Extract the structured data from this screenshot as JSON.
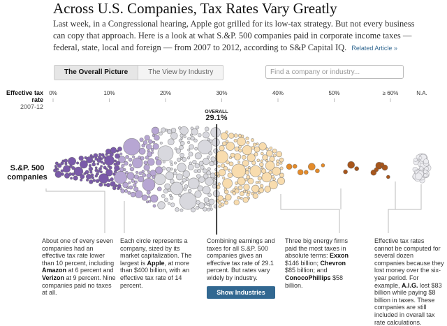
{
  "header": {
    "title": "Across U.S. Companies, Tax Rates Vary Greatly",
    "intro": "Last week, in a Congressional hearing, Apple got grilled for its low-tax strategy. But not every business can copy that approach. Here is a look at what S.&P. 500 companies paid in corporate income taxes — federal, state, local and foreign — from 2007 to 2012, according to S&P Capital IQ.",
    "related_link": "Related Article »"
  },
  "controls": {
    "tabs": [
      {
        "label": "The Overall Picture",
        "active": true
      },
      {
        "label": "The View by Industry",
        "active": false
      }
    ],
    "search_placeholder": "Find a company or industry..."
  },
  "colors": {
    "purple": "#7a5aa9",
    "light_purple": "#b7a6d3",
    "grey": "#d8d8de",
    "peach": "#f8dcae",
    "orange": "#e48b2a",
    "dark_orange": "#a8561b",
    "button": "#326891"
  },
  "chart_data": {
    "type": "scatter",
    "subtype": "beeswarm",
    "title": "Effective tax rate",
    "subtitle": "2007-12",
    "xlabel": "Effective tax rate",
    "x_unit": "percent",
    "xlim": [
      0,
      60
    ],
    "ticks": [
      "0%",
      "10%",
      "20%",
      "30%",
      "40%",
      "50%",
      "≥ 60%",
      "N.A."
    ],
    "tick_values": [
      0,
      10,
      20,
      30,
      40,
      50,
      60
    ],
    "series": [
      {
        "name": "S.&P. 500 companies"
      }
    ],
    "overall": {
      "label": "OVERALL",
      "value": "29.1%",
      "x": 29.1
    },
    "highlighted_points": [
      {
        "name": "Amazon",
        "x": 6
      },
      {
        "name": "Verizon",
        "x": 9
      },
      {
        "name": "Apple",
        "x": 14
      },
      {
        "name": "Exxon",
        "tax_paid_billion": 146
      },
      {
        "name": "Chevron",
        "tax_paid_billion": 85
      },
      {
        "name": "ConocoPhillips",
        "tax_paid_billion": 58
      },
      {
        "name": "A.I.G.",
        "lost_billion": 83,
        "taxes_billion": 8
      }
    ],
    "grid": false,
    "legend": "none"
  },
  "labels": {
    "row": "S.&P. 500 companies"
  },
  "notes": [
    {
      "html": "About one of every seven companies had an effective tax rate lower than 10 percent, including <b>Amazon</b> at 6 percent and <b>Verizon</b> at 9 percent. Nine companies paid no taxes at all."
    },
    {
      "html": "Each circle represents a company, sized by its market capitalization. The largest is <b>Apple</b>, at more than $400 billion, with an effective tax rate of 14 percent."
    },
    {
      "html": "Combining earnings and taxes for all S.&P. 500 companies gives an effective tax rate of 29.1 percent. But rates vary widely by industry."
    },
    {
      "html": "Three big energy firms paid the most taxes in absolute terms: <b>Exxon</b> $146 billion; <b>Chevron</b> $85 billion; and <b>ConocoPhillips</b> $58 billion."
    },
    {
      "html": "Effective tax rates cannot be computed for several dozen companies because they lost money over the six-year period. For example, <b>A.I.G.</b> lost $83 billion while paying $8 billion in taxes. These companies are still included in overall tax rate calculations."
    }
  ],
  "button": {
    "label": "Show Industries"
  }
}
